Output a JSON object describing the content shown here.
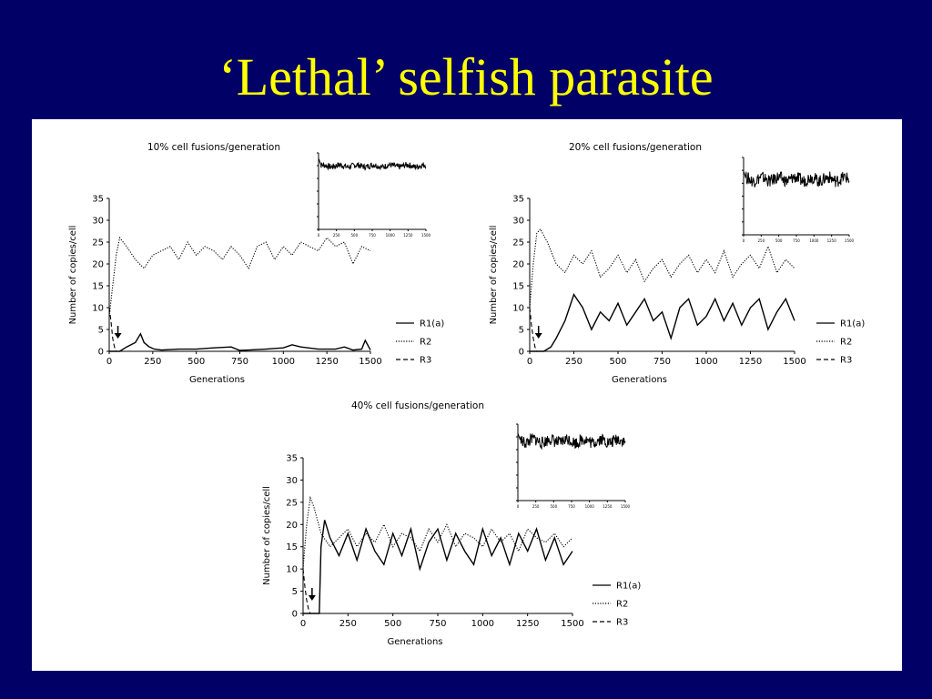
{
  "slide": {
    "title": "‘Lethal’ selfish parasite"
  },
  "chart_data": [
    {
      "type": "line",
      "title": "10% cell fusions/generation",
      "xlabel": "Generations",
      "ylabel": "Number of copies/cell",
      "xlim": [
        0,
        1500
      ],
      "ylim": [
        0,
        35
      ],
      "xticks": [
        0,
        250,
        500,
        750,
        1000,
        1250,
        1500
      ],
      "yticks": [
        0,
        5,
        10,
        15,
        20,
        25,
        30,
        35
      ],
      "legend_position": "right",
      "arrow_at_generation": 50,
      "series": [
        {
          "name": "R1(a)",
          "style": "solid",
          "x": [
            0,
            60,
            100,
            150,
            180,
            200,
            230,
            260,
            300,
            400,
            500,
            600,
            700,
            750,
            800,
            900,
            1000,
            1050,
            1100,
            1200,
            1300,
            1350,
            1400,
            1450,
            1470,
            1500
          ],
          "values": [
            0,
            0,
            1,
            2,
            4,
            2,
            1,
            0.5,
            0.3,
            0.5,
            0.5,
            0.8,
            1,
            0.2,
            0.3,
            0.5,
            0.8,
            1.5,
            1,
            0.5,
            0.5,
            1,
            0.3,
            0.5,
            2.5,
            0.3
          ]
        },
        {
          "name": "R2",
          "style": "dotted",
          "x": [
            0,
            20,
            40,
            60,
            100,
            150,
            200,
            250,
            300,
            350,
            400,
            450,
            500,
            550,
            600,
            650,
            700,
            750,
            800,
            850,
            900,
            950,
            1000,
            1050,
            1100,
            1150,
            1200,
            1250,
            1300,
            1350,
            1400,
            1450,
            1500
          ],
          "values": [
            8,
            15,
            22,
            26,
            24,
            21,
            19,
            22,
            23,
            24,
            21,
            25,
            22,
            24,
            23,
            21,
            24,
            22,
            19,
            24,
            25,
            21,
            24,
            22,
            25,
            24,
            23,
            26,
            24,
            25,
            20,
            24,
            23
          ]
        },
        {
          "name": "R3",
          "style": "dashed",
          "x": [
            0,
            10,
            20,
            30,
            40,
            60,
            1500
          ],
          "values": [
            10,
            7,
            3,
            1,
            0,
            0,
            0
          ]
        }
      ],
      "inset": {
        "xticks": [
          0,
          250,
          500,
          750,
          1000,
          1250,
          1500
        ],
        "ylim": [
          0,
          1
        ],
        "level": 0.83
      }
    },
    {
      "type": "line",
      "title": "20% cell fusions/generation",
      "xlabel": "Generations",
      "ylabel": "Number of copies/cell",
      "xlim": [
        0,
        1500
      ],
      "ylim": [
        0,
        35
      ],
      "xticks": [
        0,
        250,
        500,
        750,
        1000,
        1250,
        1500
      ],
      "yticks": [
        0,
        5,
        10,
        15,
        20,
        25,
        30,
        35
      ],
      "legend_position": "right",
      "arrow_at_generation": 50,
      "series": [
        {
          "name": "R1(a)",
          "style": "solid",
          "x": [
            0,
            50,
            80,
            120,
            150,
            200,
            250,
            300,
            350,
            400,
            450,
            500,
            550,
            600,
            650,
            700,
            750,
            800,
            850,
            900,
            950,
            1000,
            1050,
            1100,
            1150,
            1200,
            1250,
            1300,
            1350,
            1400,
            1450,
            1500
          ],
          "values": [
            0,
            0,
            0,
            1,
            3,
            7,
            13,
            10,
            5,
            9,
            7,
            11,
            6,
            9,
            12,
            7,
            9,
            3,
            10,
            12,
            6,
            8,
            12,
            7,
            11,
            6,
            10,
            12,
            5,
            9,
            12,
            7
          ]
        },
        {
          "name": "R2",
          "style": "dotted",
          "x": [
            0,
            20,
            40,
            60,
            100,
            150,
            200,
            250,
            300,
            350,
            400,
            450,
            500,
            550,
            600,
            650,
            700,
            750,
            800,
            850,
            900,
            950,
            1000,
            1050,
            1100,
            1150,
            1200,
            1250,
            1300,
            1350,
            1400,
            1450,
            1500
          ],
          "values": [
            10,
            20,
            27,
            28,
            25,
            20,
            18,
            22,
            20,
            23,
            17,
            19,
            22,
            18,
            21,
            16,
            19,
            21,
            17,
            20,
            22,
            18,
            21,
            18,
            23,
            17,
            20,
            22,
            19,
            24,
            18,
            21,
            19
          ]
        },
        {
          "name": "R3",
          "style": "dashed",
          "x": [
            0,
            10,
            20,
            30,
            40,
            60,
            1500
          ],
          "values": [
            10,
            6,
            3,
            1,
            0,
            0,
            0
          ]
        }
      ],
      "inset": {
        "xticks": [
          0,
          250,
          500,
          750,
          1000,
          1250,
          1500
        ],
        "ylim": [
          0,
          1
        ],
        "level": 0.72
      }
    },
    {
      "type": "line",
      "title": "40% cell fusions/generation",
      "xlabel": "Generations",
      "ylabel": "Number of copies/cell",
      "xlim": [
        0,
        1500
      ],
      "ylim": [
        0,
        35
      ],
      "xticks": [
        0,
        250,
        500,
        750,
        1000,
        1250,
        1500
      ],
      "yticks": [
        0,
        5,
        10,
        15,
        20,
        25,
        30,
        35
      ],
      "legend_position": "right",
      "arrow_at_generation": 50,
      "series": [
        {
          "name": "R1(a)",
          "style": "solid",
          "x": [
            0,
            60,
            90,
            100,
            120,
            150,
            200,
            250,
            300,
            350,
            400,
            450,
            500,
            550,
            600,
            650,
            700,
            750,
            800,
            850,
            900,
            950,
            1000,
            1050,
            1100,
            1150,
            1200,
            1250,
            1300,
            1350,
            1400,
            1450,
            1500
          ],
          "values": [
            0,
            0,
            0,
            15,
            21,
            17,
            13,
            18,
            12,
            19,
            14,
            11,
            18,
            13,
            19,
            10,
            16,
            19,
            12,
            18,
            14,
            11,
            19,
            13,
            17,
            11,
            18,
            14,
            19,
            12,
            17,
            11,
            14
          ]
        },
        {
          "name": "R2",
          "style": "dotted",
          "x": [
            0,
            20,
            40,
            60,
            100,
            150,
            200,
            250,
            300,
            350,
            400,
            450,
            500,
            550,
            600,
            650,
            700,
            750,
            800,
            850,
            900,
            950,
            1000,
            1050,
            1100,
            1150,
            1200,
            1250,
            1300,
            1350,
            1400,
            1450,
            1500
          ],
          "values": [
            10,
            20,
            26,
            24,
            18,
            15,
            17,
            19,
            15,
            18,
            16,
            20,
            15,
            18,
            17,
            14,
            19,
            16,
            20,
            15,
            18,
            17,
            15,
            19,
            16,
            18,
            14,
            19,
            17,
            16,
            18,
            15,
            17
          ]
        },
        {
          "name": "R3",
          "style": "dashed",
          "x": [
            0,
            10,
            20,
            30,
            40,
            60,
            1500
          ],
          "values": [
            10,
            6,
            3,
            1,
            0,
            0,
            0
          ]
        }
      ],
      "inset": {
        "xticks": [
          0,
          250,
          500,
          750,
          1000,
          1250,
          1500
        ],
        "ylim": [
          0,
          1
        ],
        "level": 0.78
      }
    }
  ]
}
